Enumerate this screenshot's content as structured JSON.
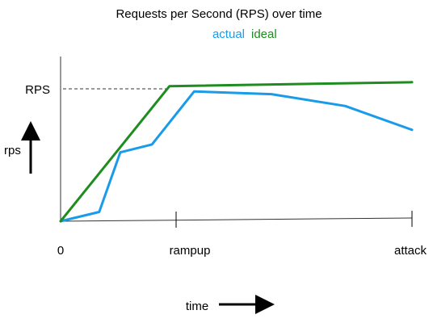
{
  "chart_data": {
    "type": "line",
    "title": "Requests per Second (RPS) over time",
    "xlabel": "time",
    "ylabel": "rps",
    "x_ticks": [
      "0",
      "rampup",
      "attack"
    ],
    "y_ticks": [
      "RPS"
    ],
    "series": [
      {
        "name": "actual",
        "color": "#1a9be9",
        "points": [
          [
            0,
            0
          ],
          [
            0.11,
            0.07
          ],
          [
            0.17,
            0.52
          ],
          [
            0.26,
            0.58
          ],
          [
            0.38,
            0.98
          ],
          [
            0.6,
            0.96
          ],
          [
            0.81,
            0.87
          ],
          [
            1.0,
            0.69
          ]
        ]
      },
      {
        "name": "ideal",
        "color": "#1e8c1e",
        "points": [
          [
            0,
            0
          ],
          [
            0.31,
            1.02
          ],
          [
            1.0,
            1.05
          ]
        ]
      }
    ]
  }
}
